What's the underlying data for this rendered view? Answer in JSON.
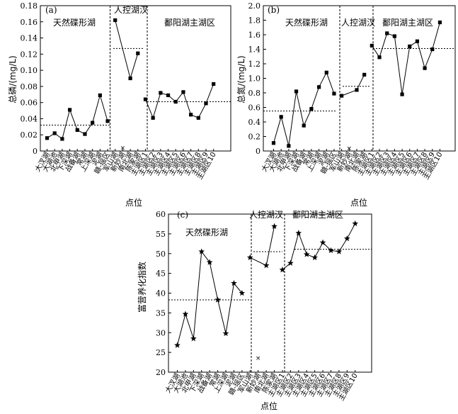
{
  "figure": {
    "categories": [
      "大汊湖",
      "大湖池",
      "北甲湖",
      "下深湖",
      "战备湖",
      "常湖",
      "上深湖",
      "泥湖",
      "赣-瑶区",
      "军山湖",
      "新妙湖",
      "南北湖",
      "陈家湖",
      "主湖区1",
      "主湖区2",
      "主湖区3",
      "主湖区4",
      "主湖区5",
      "主湖区6",
      "主湖区7",
      "主湖区8",
      "主湖区9",
      "主湖区10"
    ],
    "x_label": "点位"
  },
  "chart_data": [
    {
      "type": "line",
      "panel_label": "(a)",
      "ylabel": "总磷/(mg/L)",
      "ylim": [
        0,
        0.18
      ],
      "yticks": [
        "0",
        "0.02",
        "0.04",
        "0.06",
        "0.08",
        "0.10",
        "0.12",
        "0.14",
        "0.16",
        "0.18"
      ],
      "region_labels": [
        "天然碟形湖",
        "人控湖汊",
        "鄱阳湖主湖区"
      ],
      "values": [
        0.016,
        0.022,
        0.015,
        0.051,
        0.026,
        0.021,
        0.035,
        0.069,
        0.037,
        0.162,
        0.004,
        0.09,
        0.121,
        0.064,
        0.041,
        0.072,
        0.069,
        0.061,
        0.073,
        0.045,
        0.041,
        0.059,
        0.083
      ],
      "region_means": [
        0.032,
        0.127,
        0.061
      ],
      "outlier_index": 10
    },
    {
      "type": "line",
      "panel_label": "(b)",
      "ylabel": "总氮/(mg/L)",
      "ylim": [
        0,
        2.0
      ],
      "yticks": [
        "0",
        "0.2",
        "0.4",
        "0.6",
        "0.8",
        "1.0",
        "1.2",
        "1.4",
        "1.6",
        "1.8",
        "2.0"
      ],
      "region_labels": [
        "天然碟形湖",
        "人控湖汊",
        "鄱阳湖主湖区"
      ],
      "values": [
        0.11,
        0.47,
        0.07,
        0.82,
        0.35,
        0.58,
        0.88,
        1.08,
        0.79,
        0.76,
        0.04,
        0.84,
        1.05,
        1.45,
        1.29,
        1.62,
        1.58,
        0.78,
        1.44,
        1.51,
        1.14,
        1.4,
        1.77
      ],
      "region_means": [
        0.55,
        0.89,
        1.41
      ],
      "outlier_index": 10
    },
    {
      "type": "line",
      "panel_label": "(c)",
      "ylabel": "富营养化指数",
      "ylim": [
        20,
        60
      ],
      "yticks": [
        "20",
        "25",
        "30",
        "35",
        "40",
        "45",
        "50",
        "55",
        "60"
      ],
      "region_labels": [
        "天然碟形湖",
        "人控湖汊",
        "鄱阳湖主湖区"
      ],
      "values": [
        26.8,
        34.7,
        28.5,
        50.5,
        47.8,
        38.3,
        29.8,
        42.5,
        40.0,
        49.0,
        23.6,
        47.0,
        56.9,
        45.9,
        47.6,
        55.2,
        49.8,
        49.0,
        52.8,
        50.8,
        50.5,
        53.8,
        57.6
      ],
      "region_means": [
        38.3,
        50.5,
        51.1
      ],
      "outlier_index": 10
    }
  ]
}
